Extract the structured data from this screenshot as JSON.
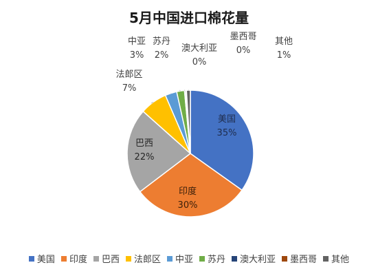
{
  "chart_data": {
    "type": "pie",
    "title": "5月中国进口棉花量",
    "slices": [
      {
        "name": "美国",
        "value": 35,
        "label": "35%",
        "color": "#4472C4"
      },
      {
        "name": "印度",
        "value": 30,
        "label": "30%",
        "color": "#ED7D31"
      },
      {
        "name": "巴西",
        "value": 22,
        "label": "22%",
        "color": "#A5A5A5"
      },
      {
        "name": "法郎区",
        "value": 7,
        "label": "7%",
        "color": "#FFC000"
      },
      {
        "name": "中亚",
        "value": 3,
        "label": "3%",
        "color": "#5B9BD5"
      },
      {
        "name": "苏丹",
        "value": 2,
        "label": "2%",
        "color": "#70AD47"
      },
      {
        "name": "澳大利亚",
        "value": 0.3,
        "label": "0%",
        "color": "#264478"
      },
      {
        "name": "墨西哥",
        "value": 0.2,
        "label": "0%",
        "color": "#9E480E"
      },
      {
        "name": "其他",
        "value": 1,
        "label": "1%",
        "color": "#636363"
      }
    ],
    "legend_position": "bottom"
  }
}
